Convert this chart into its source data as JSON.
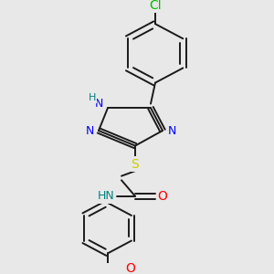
{
  "background_color": "#e8e8e8",
  "fig_width": 3.0,
  "fig_height": 3.0,
  "dpi": 100,
  "bond_lw": 1.4,
  "colors": {
    "black": "#1a1a1a",
    "N": "#0000ff",
    "H": "#008080",
    "S": "#cccc00",
    "O": "#ff0000",
    "Cl": "#00bb00"
  }
}
